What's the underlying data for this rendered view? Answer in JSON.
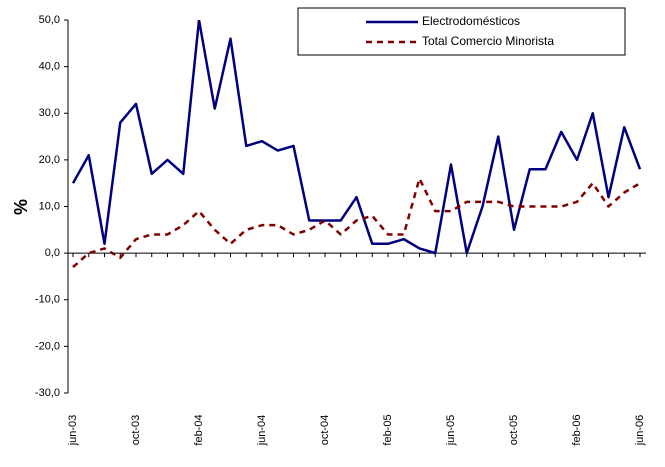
{
  "chart_data": {
    "type": "line",
    "ylabel": "%",
    "categories": [
      "jun-03",
      null,
      null,
      null,
      "oct-03",
      null,
      null,
      null,
      "feb-04",
      null,
      null,
      null,
      "jun-04",
      null,
      null,
      null,
      "oct-04",
      null,
      null,
      null,
      "feb-05",
      null,
      null,
      null,
      "jun-05",
      null,
      null,
      null,
      "oct-05",
      null,
      null,
      null,
      "feb-06",
      null,
      null,
      null,
      "jun-06"
    ],
    "series": [
      {
        "name": "Electrodomésticos",
        "color": "#000080",
        "dashed": false,
        "values": [
          15,
          21,
          2,
          28,
          32,
          17,
          20,
          17,
          50,
          31,
          46,
          23,
          24,
          22,
          23,
          7,
          7,
          7,
          12,
          2,
          2,
          3,
          1,
          0,
          19,
          0,
          10,
          25,
          5,
          18,
          18,
          26,
          20,
          30,
          12,
          27,
          18
        ]
      },
      {
        "name": "Total Comercio Minorista",
        "color": "#800000",
        "dashed": true,
        "values": [
          -3,
          0,
          1,
          -1,
          3,
          4,
          4,
          6,
          9,
          5,
          2,
          5,
          6,
          6,
          4,
          5,
          7,
          4,
          7,
          8,
          4,
          4,
          16,
          9,
          9,
          11,
          11,
          11,
          10,
          10,
          10,
          10,
          11,
          15,
          10,
          13,
          15
        ]
      }
    ],
    "ylim": [
      -30,
      50
    ],
    "yticks": [
      {
        "value": -30,
        "label": "-30,0"
      },
      {
        "value": -20,
        "label": "-20,0"
      },
      {
        "value": -10,
        "label": "-10,0"
      },
      {
        "value": 0,
        "label": "0,0"
      },
      {
        "value": 10,
        "label": "10,0"
      },
      {
        "value": 20,
        "label": "20,0"
      },
      {
        "value": 30,
        "label": "30,0"
      },
      {
        "value": 40,
        "label": "40,0"
      },
      {
        "value": 50,
        "label": "50,0"
      }
    ],
    "legend": "top-right"
  }
}
